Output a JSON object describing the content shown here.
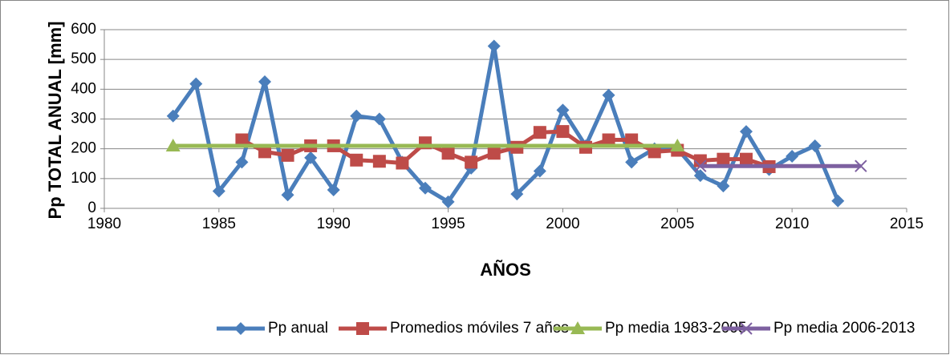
{
  "chart_data": {
    "type": "line",
    "xlabel": "AÑOS",
    "ylabel": "Pp TOTAL ANUAL [mm]",
    "xlim": [
      1980,
      2015
    ],
    "xticks": [
      1980,
      1985,
      1990,
      1995,
      2000,
      2005,
      2010,
      2015
    ],
    "ylim": [
      0,
      600
    ],
    "yticks": [
      0,
      100,
      200,
      300,
      400,
      500,
      600
    ],
    "grid": true,
    "legend": "bottom",
    "series": [
      {
        "name": "Pp anual",
        "color": "#4a7ebb",
        "marker": "diamond",
        "x": [
          1983,
          1984,
          1985,
          1986,
          1987,
          1988,
          1989,
          1990,
          1991,
          1992,
          1993,
          1994,
          1995,
          1996,
          1997,
          1998,
          1999,
          2000,
          2001,
          2002,
          2003,
          2004,
          2005,
          2006,
          2007,
          2008,
          2009,
          2010,
          2011,
          2012
        ],
        "values": [
          310,
          418,
          58,
          155,
          425,
          45,
          170,
          62,
          310,
          300,
          155,
          68,
          22,
          135,
          545,
          48,
          125,
          330,
          210,
          380,
          155,
          200,
          200,
          110,
          75,
          258,
          130,
          175,
          210,
          25
        ]
      },
      {
        "name": "Promedios móviles 7 años",
        "color": "#be4b48",
        "marker": "square",
        "x": [
          1986,
          1987,
          1988,
          1989,
          1990,
          1991,
          1992,
          1993,
          1994,
          1995,
          1996,
          1997,
          1998,
          1999,
          2000,
          2001,
          2002,
          2003,
          2004,
          2005,
          2006,
          2007,
          2008,
          2009
        ],
        "values": [
          230,
          190,
          178,
          210,
          210,
          162,
          158,
          152,
          220,
          185,
          155,
          185,
          205,
          255,
          258,
          205,
          230,
          230,
          190,
          195,
          160,
          165,
          165,
          140
        ]
      },
      {
        "name": "Pp media 1983-2005",
        "color": "#98b954",
        "marker": "triangle",
        "x": [
          1983,
          2005
        ],
        "values": [
          210,
          210
        ]
      },
      {
        "name": "Pp media 2006-2013",
        "color": "#7d60a0",
        "marker": "x",
        "x": [
          2006,
          2013
        ],
        "values": [
          142,
          142
        ]
      }
    ]
  }
}
